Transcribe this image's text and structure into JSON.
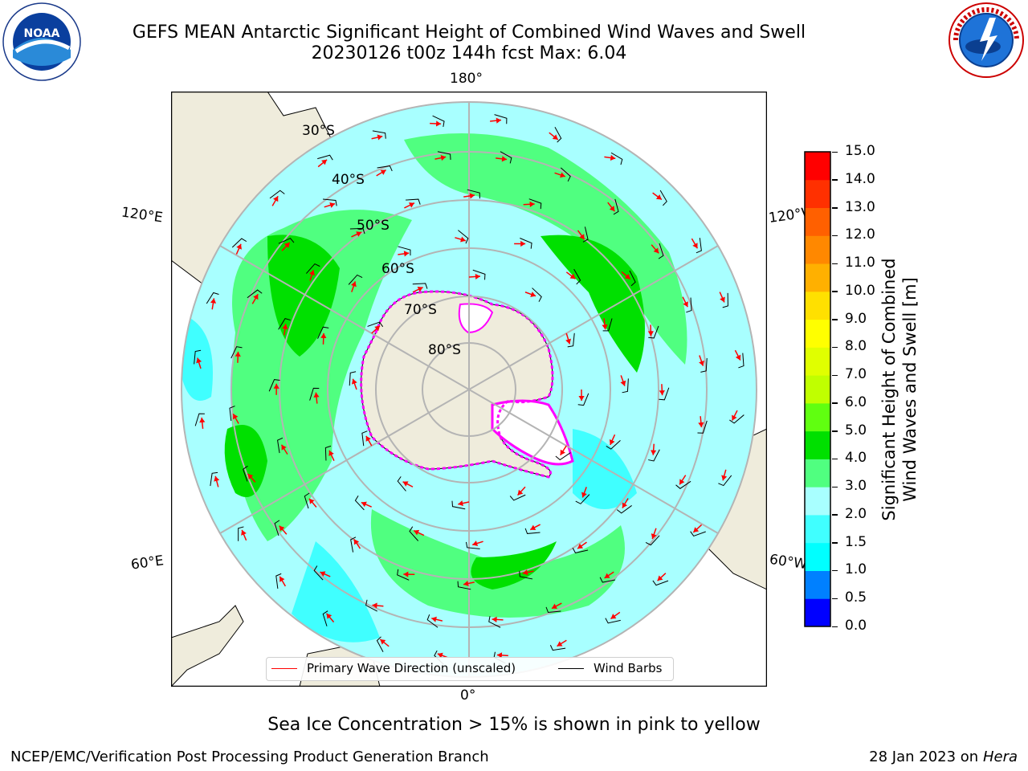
{
  "header": {
    "title_line1": "GEFS MEAN Antarctic Significant Height of Combined Wind Waves and Swell",
    "title_line2": "20230126 t00z 144h fcst   Max: 6.04"
  },
  "logos": {
    "left": {
      "name": "NOAA",
      "ring_text": "NATIONAL OCEANIC AND ATMOSPHERIC ADMINISTRATION · U.S. DEPARTMENT OF COMMERCE"
    },
    "right": {
      "name": "NATIONAL WEATHER SERVICE"
    }
  },
  "map": {
    "longitude_labels": {
      "top": "180°",
      "bottom": "0°",
      "upper_left": "120°E",
      "upper_right": "120°W",
      "lower_left": "60°E",
      "lower_right": "60°W"
    },
    "latitude_labels": [
      "30°S",
      "40°S",
      "50°S",
      "60°S",
      "70°S",
      "80°S"
    ],
    "colors": {
      "land": "#efecdc",
      "ocean_base": "#a8ffff",
      "grid": "#b4b4b4",
      "wave_arrow": "#ff0000",
      "wind_barb": "#000000",
      "sea_ice": "#ff00ff"
    }
  },
  "colorbar": {
    "label_line1": "Significant Height of Combined",
    "label_line2": "Wind Waves and Swell [m]",
    "ticks": [
      "0.0",
      "0.5",
      "1.0",
      "1.5",
      "2.0",
      "3.0",
      "4.0",
      "5.0",
      "6.0",
      "7.0",
      "8.0",
      "9.0",
      "10.0",
      "11.0",
      "12.0",
      "13.0",
      "14.0",
      "15.0"
    ],
    "colors": [
      "#0000ff",
      "#0080ff",
      "#00ffff",
      "#40ffff",
      "#a8ffff",
      "#50ff80",
      "#00e000",
      "#60ff10",
      "#c0ff00",
      "#e0ff00",
      "#ffff00",
      "#ffe000",
      "#ffb000",
      "#ff8800",
      "#ff6000",
      "#ff3000",
      "#ff0000"
    ]
  },
  "legend": {
    "primary_wave": "Primary Wave Direction (unscaled)",
    "wind_barbs": "Wind Barbs"
  },
  "caption": "Sea Ice Concentration > 15% is shown in pink to yellow",
  "footer": {
    "left": "NCEP/EMC/Verification Post Processing Product Generation Branch",
    "right_date": "28 Jan 2023 on",
    "right_host": "Hera"
  }
}
